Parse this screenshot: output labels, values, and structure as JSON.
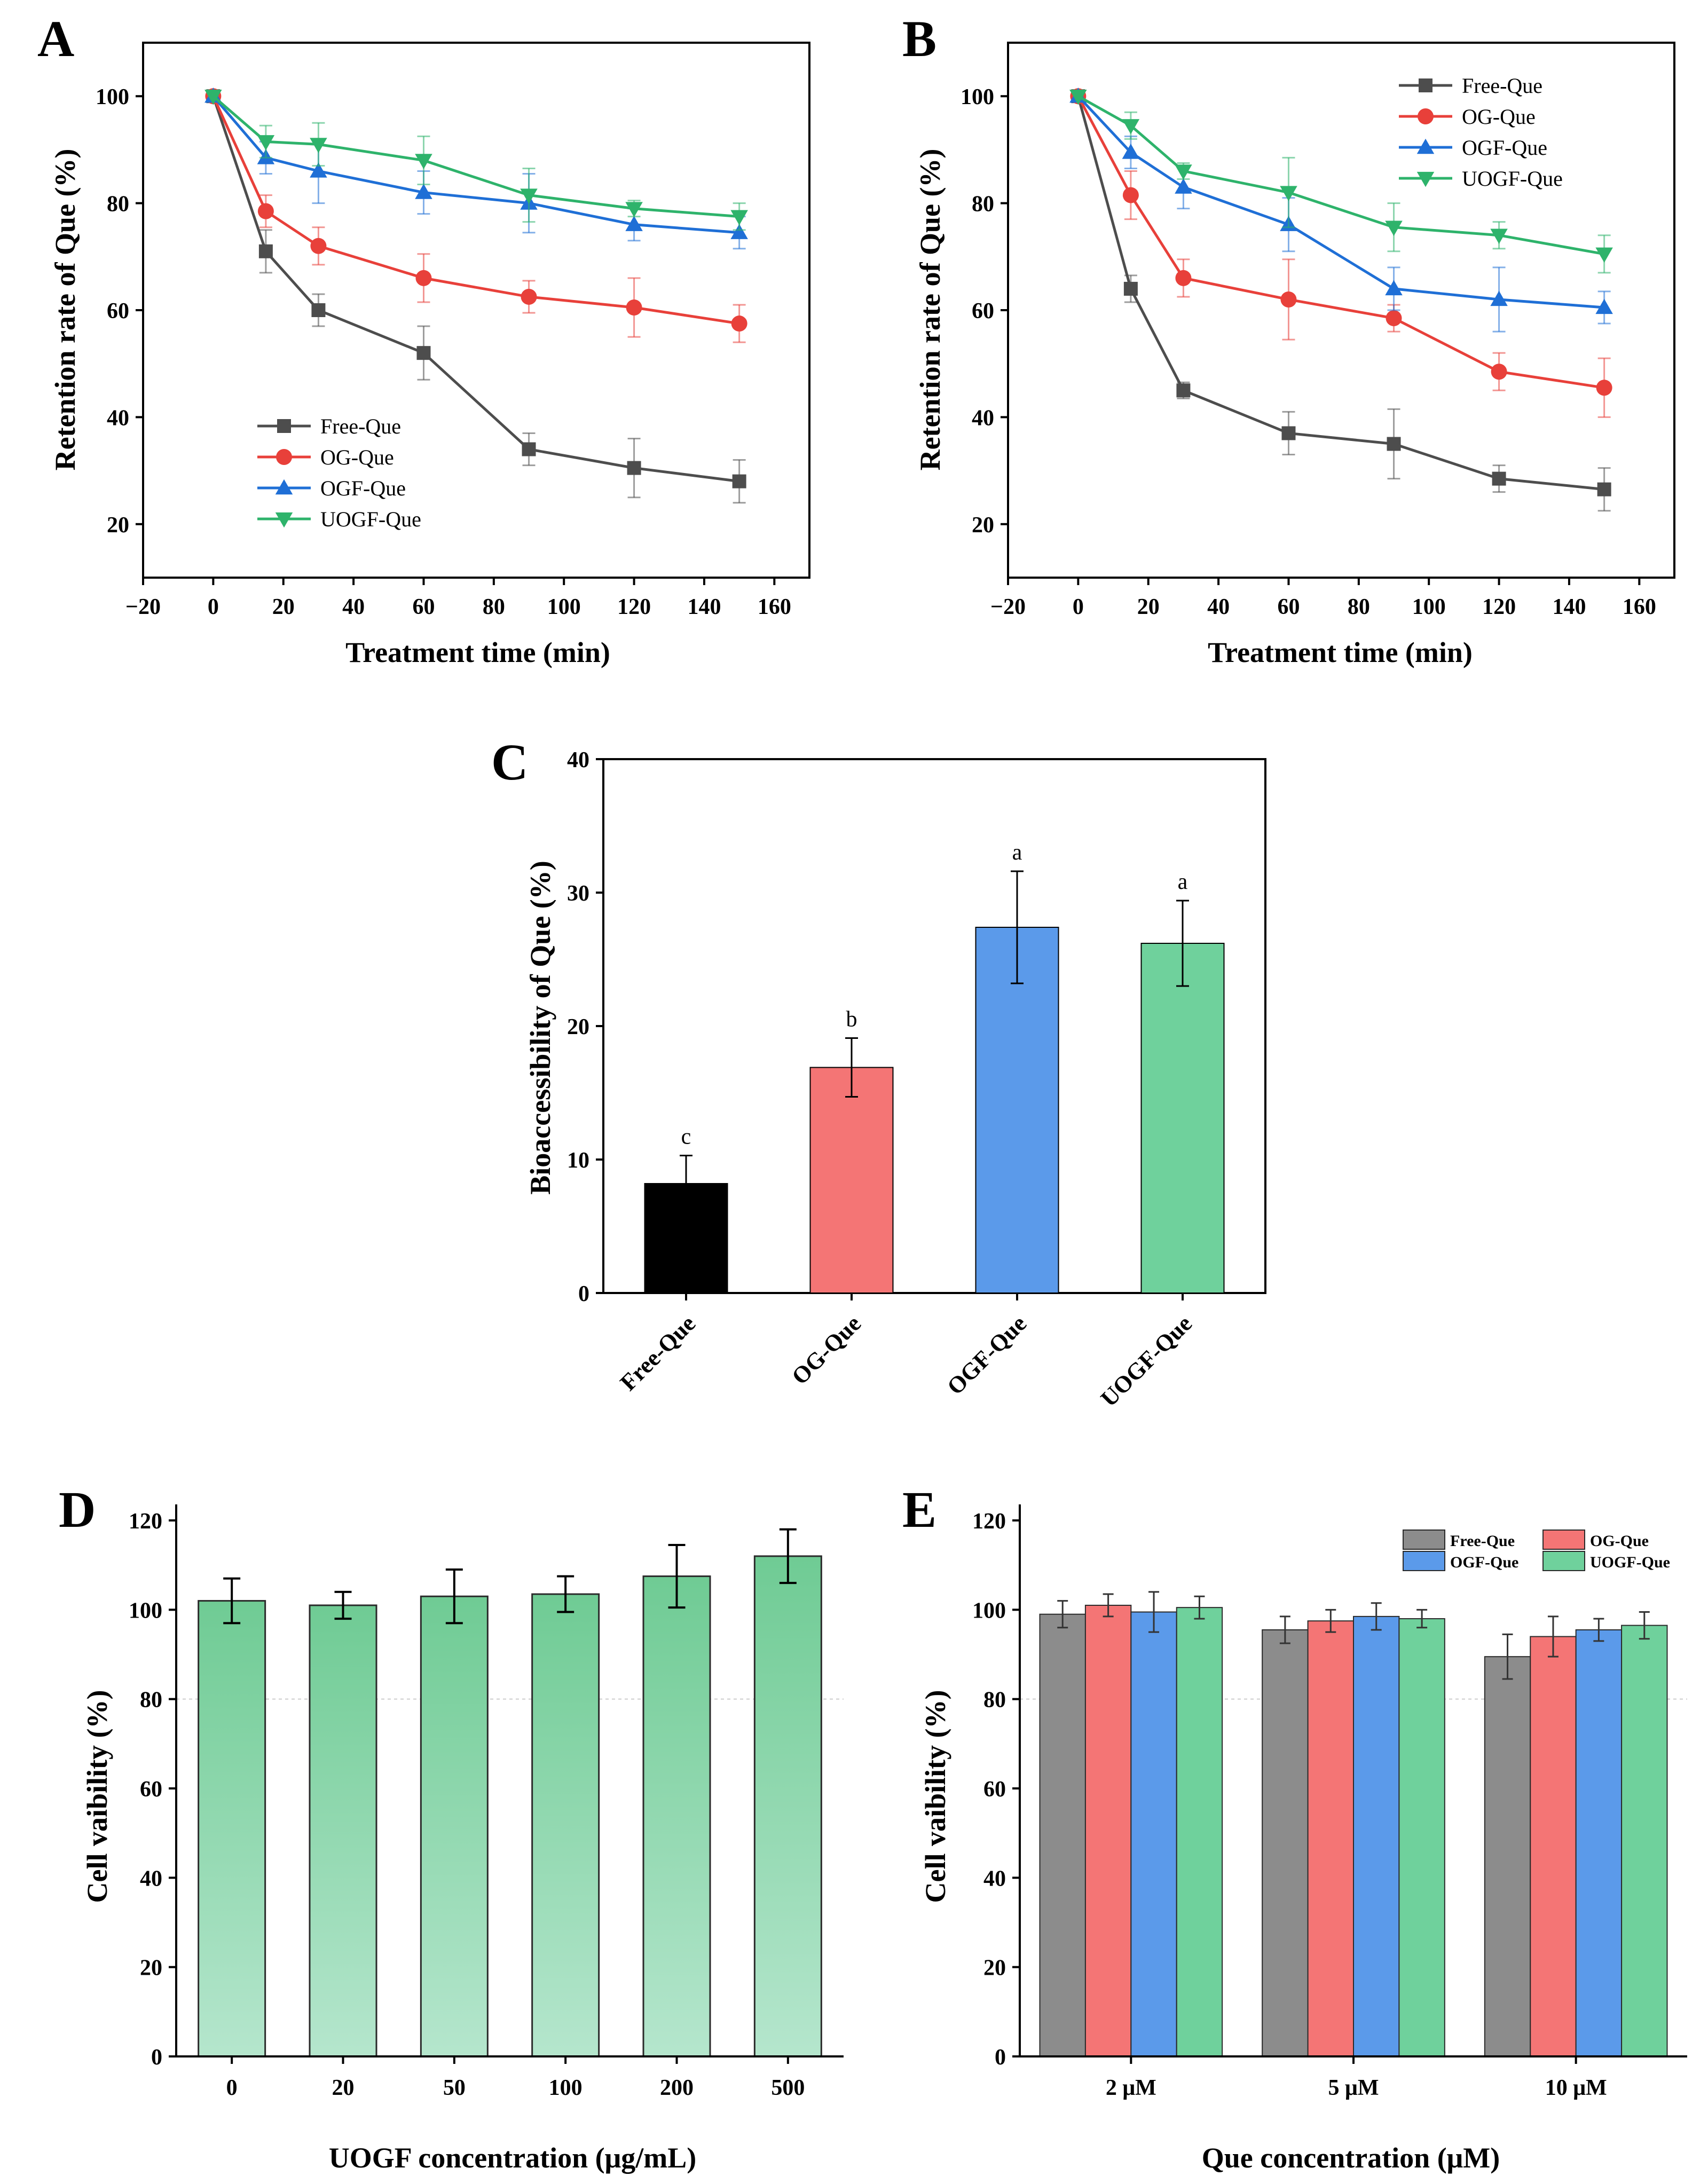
{
  "colors": {
    "free": "#4d4d4d",
    "og": "#e8403a",
    "ogf": "#1f6fd6",
    "uogf": "#2eb36b",
    "bar_black": "#000000",
    "bar_pink": "#f47575",
    "bar_blue": "#5b9aea",
    "bar_green": "#6fd19c",
    "bar_gray": "#8c8c8c"
  },
  "chart_data": [
    {
      "panel": "A",
      "type": "line",
      "xlabel": "Treatment time (min)",
      "ylabel": "Retention rate of Que (%)",
      "xlim": [
        -20,
        170
      ],
      "ylim": [
        10,
        110
      ],
      "xticks": [
        -20,
        0,
        20,
        40,
        60,
        80,
        100,
        120,
        140,
        160
      ],
      "yticks": [
        20,
        40,
        60,
        80,
        100
      ],
      "legend_position": "bottom-left",
      "x": [
        0,
        15,
        30,
        60,
        90,
        120,
        150
      ],
      "series": [
        {
          "name": "Free-Que",
          "marker": "square",
          "color": "#4d4d4d",
          "values": [
            100,
            71,
            60,
            52,
            34,
            30.5,
            28
          ],
          "errors": [
            0,
            4,
            3,
            5,
            3,
            5.5,
            4
          ]
        },
        {
          "name": "OG-Que",
          "marker": "circle",
          "color": "#e8403a",
          "values": [
            100,
            78.5,
            72,
            66,
            62.5,
            60.5,
            57.5
          ],
          "errors": [
            0,
            3,
            3.5,
            4.5,
            3,
            5.5,
            3.5
          ]
        },
        {
          "name": "OGF-Que",
          "marker": "triangle-up",
          "color": "#1f6fd6",
          "values": [
            100,
            88.5,
            86,
            82,
            80,
            76,
            74.5
          ],
          "errors": [
            0,
            3,
            6,
            4,
            5.5,
            3,
            3
          ]
        },
        {
          "name": "UOGF-Que",
          "marker": "triangle-down",
          "color": "#2eb36b",
          "values": [
            100,
            91.5,
            91,
            88,
            81.5,
            79,
            77.5
          ],
          "errors": [
            0,
            3,
            4,
            4.5,
            5,
            1.5,
            2.5
          ]
        }
      ]
    },
    {
      "panel": "B",
      "type": "line",
      "xlabel": "Treatment time (min)",
      "ylabel": "Retention rate of Que (%)",
      "xlim": [
        -20,
        170
      ],
      "ylim": [
        10,
        110
      ],
      "xticks": [
        -20,
        0,
        20,
        40,
        60,
        80,
        100,
        120,
        140,
        160
      ],
      "yticks": [
        20,
        40,
        60,
        80,
        100
      ],
      "legend_position": "top-right",
      "x": [
        0,
        15,
        30,
        60,
        90,
        120,
        150
      ],
      "series": [
        {
          "name": "Free-Que",
          "marker": "square",
          "color": "#4d4d4d",
          "values": [
            100,
            64,
            45,
            37,
            35,
            28.5,
            26.5
          ],
          "errors": [
            0,
            2.5,
            1.5,
            4,
            6.5,
            2.5,
            4
          ]
        },
        {
          "name": "OG-Que",
          "marker": "circle",
          "color": "#e8403a",
          "values": [
            100,
            81.5,
            66,
            62,
            58.5,
            48.5,
            45.5
          ],
          "errors": [
            0,
            4.5,
            3.5,
            7.5,
            2.5,
            3.5,
            5.5
          ]
        },
        {
          "name": "OGF-Que",
          "marker": "triangle-up",
          "color": "#1f6fd6",
          "values": [
            100,
            89.5,
            83,
            76,
            64,
            62,
            60.5
          ],
          "errors": [
            0,
            3,
            4,
            5,
            4,
            6,
            3
          ]
        },
        {
          "name": "UOGF-Que",
          "marker": "triangle-down",
          "color": "#2eb36b",
          "values": [
            100,
            94.5,
            86,
            82,
            75.5,
            74,
            70.5
          ],
          "errors": [
            0,
            2.5,
            1.5,
            6.5,
            4.5,
            2.5,
            3.5
          ]
        }
      ]
    },
    {
      "panel": "C",
      "type": "bar",
      "xlabel": "",
      "ylabel": "Bioaccessibility of Que (%)",
      "ylim": [
        0,
        40
      ],
      "yticks": [
        0,
        10,
        20,
        30,
        40
      ],
      "categories": [
        "Free-Que",
        "OG-Que",
        "OGF-Que",
        "UOGF-Que"
      ],
      "values": [
        8.2,
        16.9,
        27.4,
        26.2
      ],
      "errors": [
        2.1,
        2.2,
        4.2,
        3.2
      ],
      "significance": [
        "c",
        "b",
        "a",
        "a"
      ],
      "bar_colors": [
        "#000000",
        "#f47575",
        "#5b9aea",
        "#6fd19c"
      ]
    },
    {
      "panel": "D",
      "type": "bar",
      "xlabel": "UOGF concentration (μg/mL)",
      "ylabel": "Cell vaibility (%)",
      "ylim": [
        0,
        120
      ],
      "yticks": [
        0,
        20,
        40,
        60,
        80,
        100,
        120
      ],
      "reference_line": 80,
      "categories": [
        "0",
        "20",
        "50",
        "100",
        "200",
        "500"
      ],
      "values": [
        102,
        101,
        103,
        103.5,
        107.5,
        112
      ],
      "errors": [
        5,
        3,
        6,
        4,
        7,
        6
      ],
      "bar_color": "#6fd19c"
    },
    {
      "panel": "E",
      "type": "bar",
      "xlabel": "Que concentration (μM)",
      "ylabel": "Cell vaibility (%)",
      "ylim": [
        0,
        120
      ],
      "yticks": [
        0,
        20,
        40,
        60,
        80,
        100,
        120
      ],
      "reference_line": 80,
      "legend_position": "top-right",
      "categories": [
        "2 μM",
        "5 μM",
        "10 μM"
      ],
      "series": [
        {
          "name": "Free-Que",
          "color": "#8c8c8c",
          "values": [
            99,
            95.5,
            89.5
          ],
          "errors": [
            3,
            3,
            5
          ]
        },
        {
          "name": "OG-Que",
          "color": "#f47575",
          "values": [
            101,
            97.5,
            94
          ],
          "errors": [
            2.5,
            2.5,
            4.5
          ]
        },
        {
          "name": "OGF-Que",
          "color": "#5b9aea",
          "values": [
            99.5,
            98.5,
            95.5
          ],
          "errors": [
            4.5,
            3,
            2.5
          ]
        },
        {
          "name": "UOGF-Que",
          "color": "#6fd19c",
          "values": [
            100.5,
            98,
            96.5
          ],
          "errors": [
            2.5,
            2,
            3
          ]
        }
      ]
    }
  ]
}
